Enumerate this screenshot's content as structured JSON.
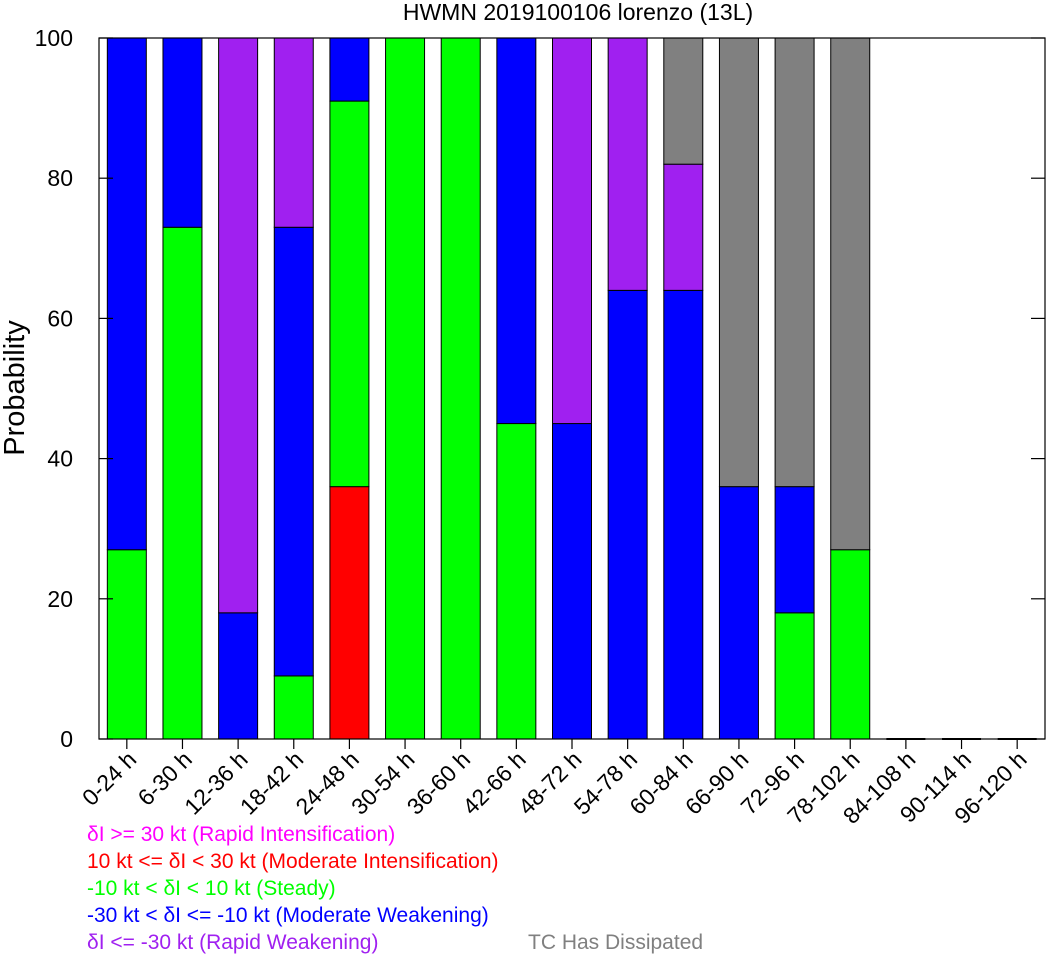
{
  "chart_data": {
    "type": "bar",
    "stacked": true,
    "title": "HWMN 2019100106 lorenzo (13L)",
    "xlabel": "",
    "ylabel": "Probability",
    "ylim": [
      0,
      100
    ],
    "yticks": [
      "0",
      "20",
      "40",
      "60",
      "80",
      "100"
    ],
    "grid": false,
    "categories": [
      "0-24 h",
      "6-30 h",
      "12-36 h",
      "18-42 h",
      "24-48 h",
      "30-54 h",
      "36-60 h",
      "42-66 h",
      "48-72 h",
      "54-78 h",
      "60-84 h",
      "66-90 h",
      "72-96 h",
      "78-102 h",
      "84-108 h",
      "90-114 h",
      "96-120 h"
    ],
    "series": [
      {
        "name": "δI >= 30 kt (Rapid Intensification)",
        "color": "#ff00ff",
        "values": [
          0,
          0,
          0,
          0,
          0,
          0,
          0,
          0,
          0,
          0,
          0,
          0,
          0,
          0,
          0,
          0,
          0
        ]
      },
      {
        "name": "10 kt <= δI < 30 kt (Moderate Intensification)",
        "color": "#ff0000",
        "values": [
          0,
          0,
          0,
          0,
          36,
          0,
          0,
          0,
          0,
          0,
          0,
          0,
          0,
          0,
          0,
          0,
          0
        ]
      },
      {
        "name": "-10 kt < δI < 10 kt (Steady)",
        "color": "#00ff00",
        "values": [
          27,
          73,
          0,
          9,
          55,
          100,
          100,
          45,
          0,
          0,
          0,
          0,
          18,
          27,
          0,
          0,
          0
        ]
      },
      {
        "name": "-30 kt < δI <= -10 kt (Moderate Weakening)",
        "color": "#0000ff",
        "values": [
          73,
          27,
          18,
          64,
          9,
          0,
          0,
          55,
          45,
          64,
          64,
          36,
          18,
          0,
          0,
          0,
          0
        ]
      },
      {
        "name": "δI <= -30 kt (Rapid Weakening)",
        "color": "#a020f0",
        "values": [
          0,
          0,
          82,
          27,
          0,
          0,
          0,
          0,
          55,
          36,
          18,
          0,
          0,
          0,
          0,
          0,
          0
        ]
      },
      {
        "name": "TC Has Dissipated",
        "color": "#808080",
        "values": [
          0,
          0,
          0,
          0,
          0,
          0,
          0,
          0,
          0,
          0,
          18,
          64,
          64,
          73,
          0,
          0,
          0
        ]
      }
    ],
    "legend_position": "bottom"
  }
}
